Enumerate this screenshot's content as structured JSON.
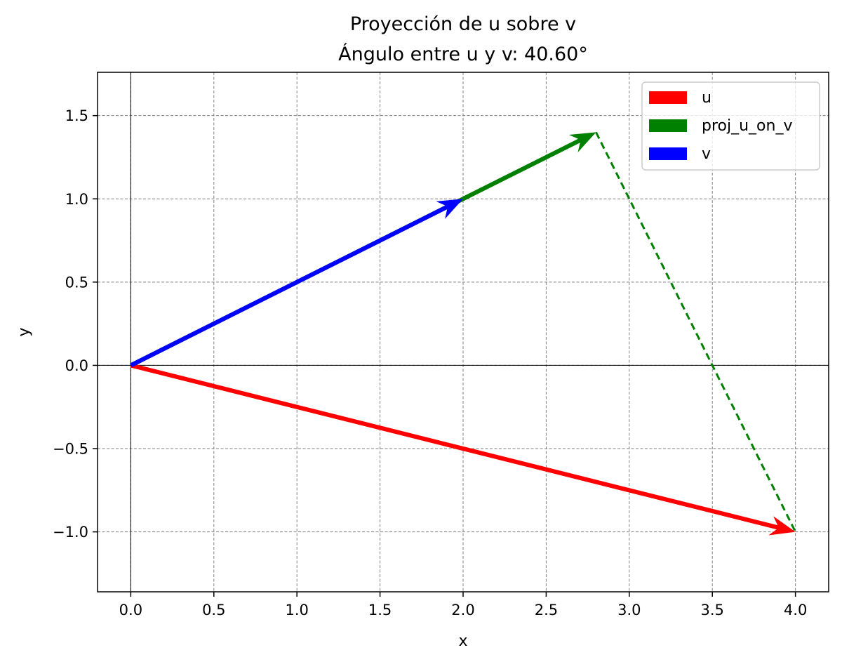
{
  "chart_data": {
    "type": "vector",
    "title": "Proyección de u sobre v",
    "subtitle": "Ángulo entre u y v: 40.60°",
    "xlabel": "x",
    "ylabel": "y",
    "xlim": [
      -0.2,
      4.2
    ],
    "ylim": [
      -1.36,
      1.76
    ],
    "xticks": [
      0.0,
      0.5,
      1.0,
      1.5,
      2.0,
      2.5,
      3.0,
      3.5,
      4.0
    ],
    "xtick_labels": [
      "0.0",
      "0.5",
      "1.0",
      "1.5",
      "2.0",
      "2.5",
      "3.0",
      "3.5",
      "4.0"
    ],
    "yticks": [
      -1.0,
      -0.5,
      0.0,
      0.5,
      1.0,
      1.5
    ],
    "ytick_labels": [
      "−1.0",
      "−0.5",
      "0.0",
      "0.5",
      "1.0",
      "1.5"
    ],
    "grid": true,
    "legend_position": "top-right",
    "vectors": [
      {
        "name": "u",
        "start": [
          0,
          0
        ],
        "end": [
          4,
          -1
        ],
        "color": "#ff0000"
      },
      {
        "name": "proj_u_on_v",
        "start": [
          0,
          0
        ],
        "end": [
          2.8,
          1.4
        ],
        "color": "#008000"
      },
      {
        "name": "v",
        "start": [
          0,
          0
        ],
        "end": [
          2,
          1
        ],
        "color": "#0000ff"
      }
    ],
    "perpendicular_line": {
      "start": [
        2.8,
        1.4
      ],
      "end": [
        4,
        -1
      ],
      "color": "#008000",
      "style": "dashed"
    },
    "legend": [
      {
        "label": "u",
        "color": "#ff0000"
      },
      {
        "label": "proj_u_on_v",
        "color": "#008000"
      },
      {
        "label": "v",
        "color": "#0000ff"
      }
    ]
  }
}
